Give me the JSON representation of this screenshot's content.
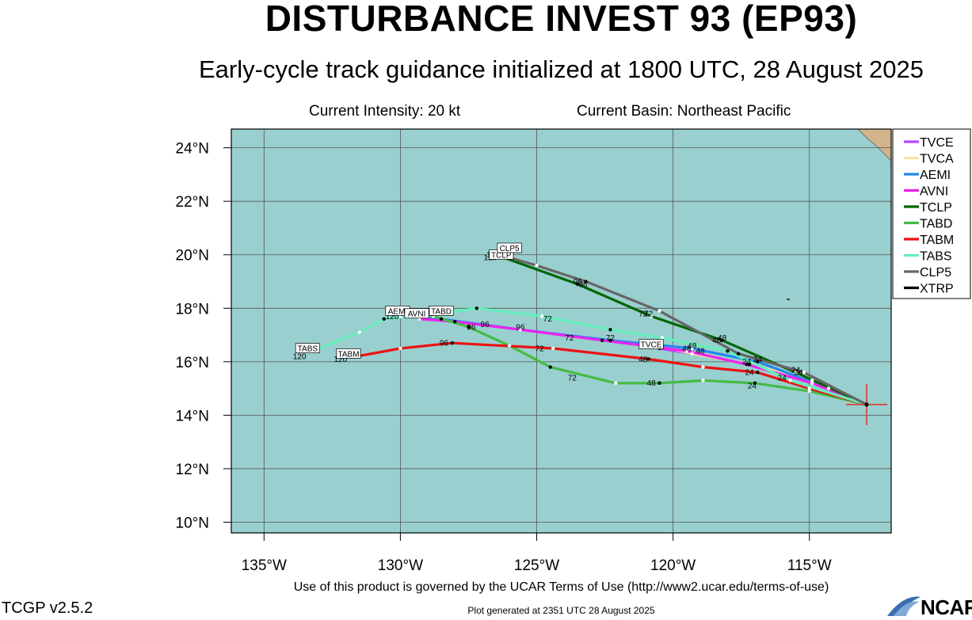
{
  "header": {
    "title": "DISTURBANCE INVEST 93 (EP93)",
    "subtitle": "Early-cycle track guidance initialized at 1800 UTC, 28 August 2025",
    "intensity": "Current Intensity: 20 kt",
    "basin": "Current Basin: Northeast Pacific"
  },
  "footer": {
    "terms": "Use of this product is governed by the UCAR Terms of Use (http://www2.ucar.edu/terms-of-use)",
    "version": "TCGP v2.5.2",
    "generated": "Plot generated at 2351 UTC   28 August 2025",
    "logo": "NCAR"
  },
  "chart_data": {
    "type": "map-track",
    "lon_range": [
      -136.2,
      -112.0
    ],
    "lat_range": [
      9.6,
      24.7
    ],
    "ocean_color": "#99cfcf",
    "land_color": "#d2b48c",
    "grid": true,
    "x_ticks": [
      {
        "lon": -135,
        "label": "135°W"
      },
      {
        "lon": -130,
        "label": "130°W"
      },
      {
        "lon": -125,
        "label": "125°W"
      },
      {
        "lon": -120,
        "label": "120°W"
      },
      {
        "lon": -115,
        "label": "115°W"
      }
    ],
    "y_ticks": [
      {
        "lat": 10,
        "label": "10°N"
      },
      {
        "lat": 12,
        "label": "12°N"
      },
      {
        "lat": 14,
        "label": "14°N"
      },
      {
        "lat": 16,
        "label": "16°N"
      },
      {
        "lat": 18,
        "label": "18°N"
      },
      {
        "lat": 20,
        "label": "20°N"
      },
      {
        "lat": 22,
        "label": "22°N"
      },
      {
        "lat": 24,
        "label": "24°N"
      }
    ],
    "current_position": {
      "lon": -112.9,
      "lat": 14.4,
      "marker_color": "#e03020"
    },
    "legend_position": "top-right",
    "series": [
      {
        "name": "TVCE",
        "color": "#bb44ff",
        "points": [
          [
            -112.9,
            14.4
          ],
          [
            -114.9,
            15.3
          ],
          [
            -117.2,
            15.9
          ],
          [
            -119.3,
            16.3
          ],
          [
            -120.5,
            16.5
          ]
        ],
        "hours": [],
        "end_label": {
          "text": "TVCE",
          "lon": -120.8,
          "lat": 16.6
        }
      },
      {
        "name": "TVCA",
        "color": "#ffdfa8",
        "points": [
          [
            -112.9,
            14.4
          ],
          [
            -114.9,
            15.3
          ],
          [
            -117.2,
            15.9
          ],
          [
            -119.3,
            16.3
          ],
          [
            -120.5,
            16.6
          ]
        ],
        "hours": [],
        "end_label": {
          "text": "",
          "lon": -120.5,
          "lat": 16.6
        }
      },
      {
        "name": "AEMI",
        "color": "#2288ee",
        "points": [
          [
            -112.9,
            14.4
          ],
          [
            -114.3,
            15.0
          ],
          [
            -116.9,
            16.0
          ],
          [
            -119.3,
            16.5
          ],
          [
            -122.3,
            16.8
          ],
          [
            -125.6,
            17.2
          ],
          [
            -128.5,
            17.6
          ],
          [
            -130.0,
            17.7
          ]
        ],
        "hours": [
          [
            -116.9,
            16.0,
            "24"
          ],
          [
            -119.3,
            16.5,
            "48"
          ],
          [
            -122.3,
            16.8,
            "72"
          ],
          [
            -125.6,
            17.2,
            "96"
          ],
          [
            -130.3,
            17.6,
            "120"
          ]
        ],
        "end_label": {
          "text": "AEMI",
          "lon": -130.1,
          "lat": 17.85
        }
      },
      {
        "name": "AVNI",
        "color": "#ee22ee",
        "points": [
          [
            -112.9,
            14.4
          ],
          [
            -114.9,
            15.2
          ],
          [
            -117.3,
            15.9
          ],
          [
            -119.5,
            16.4
          ],
          [
            -122.6,
            16.8
          ],
          [
            -125.6,
            17.2
          ],
          [
            -128.0,
            17.5
          ],
          [
            -129.3,
            17.6
          ]
        ],
        "hours": [
          [
            -117.3,
            15.9,
            "24"
          ],
          [
            -119.5,
            16.4,
            "48"
          ],
          [
            -123.8,
            16.8,
            "72"
          ]
        ],
        "end_label": {
          "text": "AVNI",
          "lon": -129.4,
          "lat": 17.75
        }
      },
      {
        "name": "TCLP",
        "color": "#006600",
        "points": [
          [
            -112.9,
            14.4
          ],
          [
            -115.5,
            15.6
          ],
          [
            -118.2,
            16.8
          ],
          [
            -120.8,
            17.7
          ],
          [
            -123.5,
            18.9
          ],
          [
            -126.5,
            20.0
          ]
        ],
        "hours": [
          [
            -115.5,
            15.6,
            "24"
          ],
          [
            -118.2,
            16.8,
            "48"
          ],
          [
            -121.1,
            17.7,
            "72"
          ],
          [
            -123.3,
            18.8,
            "96"
          ],
          [
            -126.7,
            19.8,
            "120"
          ]
        ],
        "end_label": {
          "text": "TCLP",
          "lon": -126.3,
          "lat": 19.95
        }
      },
      {
        "name": "TABD",
        "color": "#44bb44",
        "points": [
          [
            -112.9,
            14.4
          ],
          [
            -115.0,
            14.9
          ],
          [
            -117.0,
            15.2
          ],
          [
            -118.9,
            15.3
          ],
          [
            -120.5,
            15.2
          ],
          [
            -122.1,
            15.2
          ],
          [
            -124.5,
            15.8
          ],
          [
            -126.0,
            16.6
          ],
          [
            -127.5,
            17.3
          ],
          [
            -128.8,
            17.7
          ]
        ],
        "hours": [
          [
            -117.1,
            15.0,
            "24"
          ],
          [
            -120.8,
            15.1,
            "48"
          ],
          [
            -123.7,
            15.3,
            "72"
          ],
          [
            -127.4,
            17.2,
            "96"
          ],
          [
            -129.0,
            17.7,
            "120"
          ]
        ],
        "end_label": {
          "text": "TABD",
          "lon": -128.5,
          "lat": 17.85
        }
      },
      {
        "name": "TABM",
        "color": "#ee1111",
        "points": [
          [
            -112.9,
            14.4
          ],
          [
            -115.0,
            15.0
          ],
          [
            -116.9,
            15.6
          ],
          [
            -118.9,
            15.8
          ],
          [
            -120.9,
            16.1
          ],
          [
            -124.4,
            16.5
          ],
          [
            -128.1,
            16.7
          ],
          [
            -130.0,
            16.5
          ],
          [
            -131.6,
            16.2
          ]
        ],
        "hours": [
          [
            -117.2,
            15.5,
            "24"
          ],
          [
            -121.1,
            16.0,
            "48"
          ],
          [
            -124.9,
            16.4,
            "72"
          ],
          [
            -128.4,
            16.6,
            "96"
          ],
          [
            -132.2,
            16.0,
            "120"
          ]
        ],
        "end_label": {
          "text": "TABM",
          "lon": -131.9,
          "lat": 16.25
        }
      },
      {
        "name": "TABS",
        "color": "#66eebb",
        "points": [
          [
            -112.9,
            14.4
          ],
          [
            -115.7,
            15.3
          ],
          [
            -118.0,
            16.4
          ],
          [
            -120.4,
            16.9
          ],
          [
            -122.3,
            17.2
          ],
          [
            -124.8,
            17.7
          ],
          [
            -127.2,
            18.0
          ],
          [
            -128.6,
            17.8
          ],
          [
            -130.6,
            17.6
          ],
          [
            -131.5,
            17.1
          ],
          [
            -133.2,
            16.4
          ]
        ],
        "hours": [
          [
            -116.0,
            15.3,
            "24"
          ],
          [
            -119.0,
            16.3,
            "48"
          ],
          [
            -124.6,
            17.5,
            "72"
          ],
          [
            -126.9,
            17.3,
            "96"
          ],
          [
            -133.7,
            16.1,
            "120"
          ]
        ],
        "end_label": {
          "text": "TABS",
          "lon": -133.4,
          "lat": 16.45
        }
      },
      {
        "name": "CLP5",
        "color": "#666666",
        "points": [
          [
            -112.9,
            14.4
          ],
          [
            -115.2,
            15.6
          ],
          [
            -117.6,
            16.3
          ],
          [
            -120.5,
            17.9
          ],
          [
            -123.2,
            19.0
          ],
          [
            -125.0,
            19.6
          ],
          [
            -126.2,
            19.95
          ]
        ],
        "hours": [
          [
            -115.4,
            15.5,
            "24"
          ],
          [
            -118.4,
            16.7,
            "48"
          ],
          [
            -120.9,
            17.7,
            "72"
          ],
          [
            -123.5,
            18.9,
            "96"
          ],
          [
            -126.6,
            19.9,
            "120"
          ]
        ],
        "end_label": {
          "text": "CLP5",
          "lon": -126.0,
          "lat": 20.2
        }
      },
      {
        "name": "XTRP",
        "color": "#000000",
        "points": [
          [
            -112.9,
            14.4
          ],
          [
            -112.9,
            14.4
          ]
        ],
        "hours": [],
        "end_label": {
          "text": "",
          "lon": -112.9,
          "lat": 14.4
        }
      }
    ]
  }
}
